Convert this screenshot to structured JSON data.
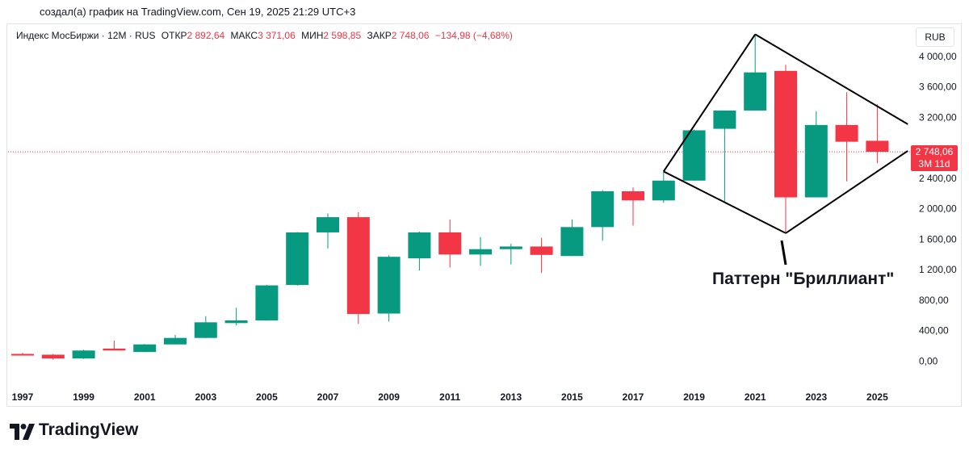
{
  "credit": "создал(а) график на TradingView.com, Сен 19, 2025 21:29 UTC+3",
  "legend": {
    "symbol": "Индекс МосБиржи · 12M · RUS",
    "open_label": "ОТКР",
    "open": "2 892,64",
    "high_label": "МАКС",
    "high": "3 371,06",
    "low_label": "МИН",
    "low": "2 598,85",
    "close_label": "ЗАКР",
    "close": "2 748,06",
    "change": "−134,98 (−4,68%)"
  },
  "currency": "RUB",
  "price_tag": {
    "price": "2 748,06",
    "countdown": "3M 11d"
  },
  "annotation": "Паттерн \"Бриллиант\"",
  "logo": {
    "text": "TradingView"
  },
  "colors": {
    "up": "#089981",
    "down": "#f23645",
    "line": "#000000"
  },
  "chart_data": {
    "type": "candlestick",
    "y_ticks": [
      {
        "value": 0,
        "label": "0,00"
      },
      {
        "value": 400,
        "label": "400,00"
      },
      {
        "value": 800,
        "label": "800,00"
      },
      {
        "value": 1200,
        "label": "1 200,00"
      },
      {
        "value": 1600,
        "label": "1 600,00"
      },
      {
        "value": 2000,
        "label": "2 000,00"
      },
      {
        "value": 2400,
        "label": "2 400,00"
      },
      {
        "value": 3200,
        "label": "3 200,00"
      },
      {
        "value": 3600,
        "label": "3 600,00"
      },
      {
        "value": 4000,
        "label": "4 000,00"
      }
    ],
    "ylim": [
      -100,
      4100
    ],
    "x_ticks": [
      "1997",
      "1999",
      "2001",
      "2003",
      "2005",
      "2007",
      "2009",
      "2011",
      "2013",
      "2015",
      "2017",
      "2019",
      "2021",
      "2023",
      "2025"
    ],
    "last_close": 2748.06,
    "candles": [
      {
        "year": 1997,
        "o": 95,
        "h": 110,
        "l": 80,
        "c": 85
      },
      {
        "year": 1998,
        "o": 85,
        "h": 95,
        "l": 20,
        "c": 35
      },
      {
        "year": 1999,
        "o": 35,
        "h": 150,
        "l": 30,
        "c": 140
      },
      {
        "year": 2000,
        "o": 165,
        "h": 270,
        "l": 140,
        "c": 140
      },
      {
        "year": 2001,
        "o": 120,
        "h": 225,
        "l": 120,
        "c": 220
      },
      {
        "year": 2002,
        "o": 220,
        "h": 345,
        "l": 220,
        "c": 305
      },
      {
        "year": 2003,
        "o": 305,
        "h": 590,
        "l": 300,
        "c": 510
      },
      {
        "year": 2004,
        "o": 500,
        "h": 700,
        "l": 470,
        "c": 535
      },
      {
        "year": 2005,
        "o": 535,
        "h": 1000,
        "l": 530,
        "c": 995
      },
      {
        "year": 2006,
        "o": 1000,
        "h": 1695,
        "l": 990,
        "c": 1690
      },
      {
        "year": 2007,
        "o": 1690,
        "h": 1940,
        "l": 1480,
        "c": 1890
      },
      {
        "year": 2008,
        "o": 1890,
        "h": 1955,
        "l": 490,
        "c": 620
      },
      {
        "year": 2009,
        "o": 625,
        "h": 1390,
        "l": 520,
        "c": 1370
      },
      {
        "year": 2010,
        "o": 1350,
        "h": 1700,
        "l": 1190,
        "c": 1690
      },
      {
        "year": 2011,
        "o": 1690,
        "h": 1860,
        "l": 1230,
        "c": 1400
      },
      {
        "year": 2012,
        "o": 1400,
        "h": 1630,
        "l": 1250,
        "c": 1470
      },
      {
        "year": 2013,
        "o": 1470,
        "h": 1540,
        "l": 1270,
        "c": 1505
      },
      {
        "year": 2014,
        "o": 1505,
        "h": 1620,
        "l": 1160,
        "c": 1395
      },
      {
        "year": 2015,
        "o": 1380,
        "h": 1860,
        "l": 1380,
        "c": 1760
      },
      {
        "year": 2016,
        "o": 1760,
        "h": 2245,
        "l": 1580,
        "c": 2230
      },
      {
        "year": 2017,
        "o": 2230,
        "h": 2280,
        "l": 1780,
        "c": 2110
      },
      {
        "year": 2018,
        "o": 2110,
        "h": 2490,
        "l": 2080,
        "c": 2370
      },
      {
        "year": 2019,
        "o": 2370,
        "h": 3040,
        "l": 2370,
        "c": 3030
      },
      {
        "year": 2020,
        "o": 3050,
        "h": 3290,
        "l": 2100,
        "c": 3290
      },
      {
        "year": 2021,
        "o": 3290,
        "h": 4290,
        "l": 3290,
        "c": 3790
      },
      {
        "year": 2022,
        "o": 3810,
        "h": 3890,
        "l": 1680,
        "c": 2150
      },
      {
        "year": 2023,
        "o": 2150,
        "h": 3280,
        "l": 2150,
        "c": 3100
      },
      {
        "year": 2024,
        "o": 3100,
        "h": 3530,
        "l": 2360,
        "c": 2880
      },
      {
        "year": 2025,
        "o": 2892.64,
        "h": 3371.06,
        "l": 2598.85,
        "c": 2748.06
      }
    ],
    "pattern_lines": [
      {
        "from": {
          "year": 2018,
          "value": 2490
        },
        "to": {
          "year": 2021,
          "value": 4290
        }
      },
      {
        "from": {
          "year": 2021,
          "value": 4290
        },
        "to": {
          "year": 2026,
          "value": 3110
        }
      },
      {
        "from": {
          "year": 2018,
          "value": 2490
        },
        "to": {
          "year": 2022,
          "value": 1680
        }
      },
      {
        "from": {
          "year": 2022,
          "value": 1680
        },
        "to": {
          "year": 2026,
          "value": 2760
        }
      }
    ]
  }
}
